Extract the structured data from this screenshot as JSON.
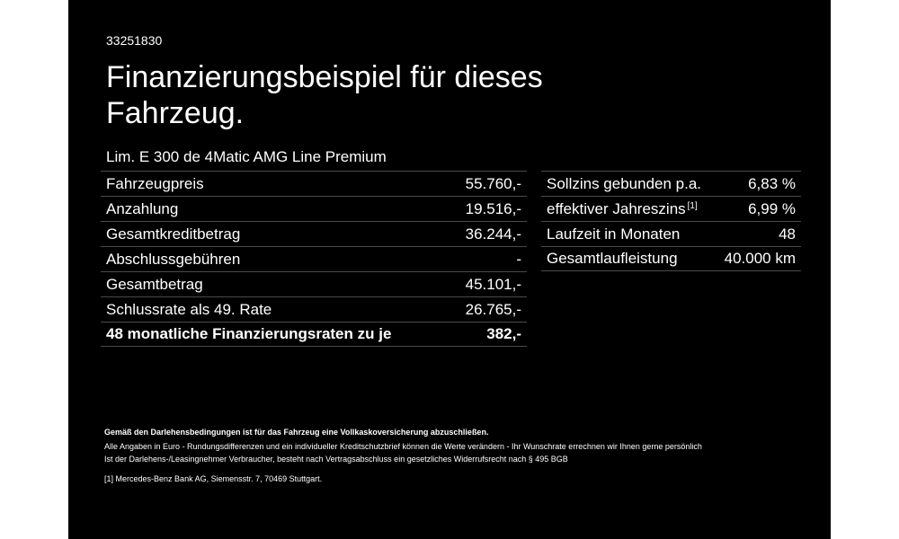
{
  "ref_number": "33251830",
  "title": "Finanzierungsbeispiel für dieses Fahrzeug.",
  "model": "Lim. E 300 de 4Matic AMG Line Premium",
  "left_rows": [
    {
      "label": "Fahrzeugpreis",
      "value": "55.760,-"
    },
    {
      "label": "Anzahlung",
      "value": "19.516,-"
    },
    {
      "label": "Gesamtkreditbetrag",
      "value": "36.244,-"
    },
    {
      "label": "Abschlussgebühren",
      "value": "-"
    },
    {
      "label": "Gesamtbetrag",
      "value": "45.101,-"
    },
    {
      "label": "Schlussrate als 49. Rate",
      "value": "26.765,-"
    },
    {
      "label": "48 monatliche Finanzierungsraten zu je",
      "value": "382,-"
    }
  ],
  "right_rows": [
    {
      "label": "Sollzins gebunden p.a.",
      "value": "6,83 %"
    },
    {
      "label": "effektiver Jahreszins",
      "footnote": "[1]",
      "value": "6,99 %"
    },
    {
      "label": "Laufzeit in Monaten",
      "value": "48"
    },
    {
      "label": "Gesamtlaufleistung",
      "value": "40.000 km"
    }
  ],
  "notes": {
    "insurance": "Gemäß den Darlehensbedingungen ist für das Fahrzeug eine Vollkaskoversicherung abzuschließen.",
    "line1": "Alle Angaben in Euro - Rundungsdifferenzen und ein individueller Kreditschutzbrief können die Werte verändern - Ihr Wunschrate errechnen wir Ihnen gerne persönlich",
    "line2": "Ist der Darlehens-/Leasingnehmer Verbraucher, besteht nach Vertragsabschluss ein gesetzliches Widerrufsrecht nach § 495 BGB",
    "footnote_marker": "[1]",
    "footnote_text": "Mercedes-Benz Bank AG, Siemensstr. 7, 70469 Stuttgart."
  },
  "colors": {
    "panel": "#000000",
    "text": "#ffffff",
    "rule": "#4a4a4a",
    "page": "#ffffff"
  }
}
